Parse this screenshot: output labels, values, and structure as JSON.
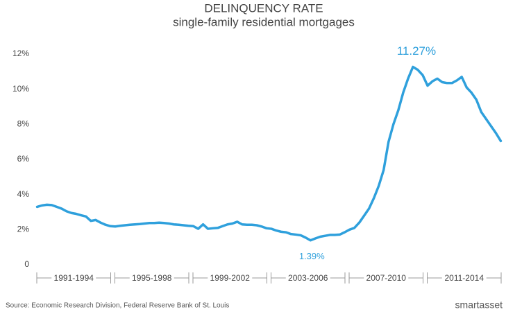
{
  "chart_data": {
    "type": "line",
    "title": "DELINQUENCY RATE",
    "subtitle": "single-family residential mortgages",
    "x_group_labels": [
      "1991-1994",
      "1995-1998",
      "1999-2002",
      "2003-2006",
      "2007-2010",
      "2011-2014"
    ],
    "values": [
      3.3,
      3.38,
      3.42,
      3.4,
      3.3,
      3.2,
      3.05,
      2.95,
      2.9,
      2.82,
      2.75,
      2.5,
      2.55,
      2.4,
      2.28,
      2.2,
      2.18,
      2.22,
      2.25,
      2.28,
      2.3,
      2.32,
      2.35,
      2.38,
      2.38,
      2.4,
      2.38,
      2.35,
      2.3,
      2.28,
      2.25,
      2.22,
      2.2,
      2.05,
      2.3,
      2.05,
      2.08,
      2.1,
      2.2,
      2.3,
      2.35,
      2.45,
      2.3,
      2.28,
      2.28,
      2.25,
      2.18,
      2.08,
      2.05,
      1.95,
      1.88,
      1.85,
      1.75,
      1.72,
      1.68,
      1.55,
      1.39,
      1.5,
      1.6,
      1.65,
      1.7,
      1.7,
      1.72,
      1.85,
      2.0,
      2.1,
      2.4,
      2.8,
      3.2,
      3.8,
      4.5,
      5.4,
      7.0,
      8.0,
      8.8,
      9.8,
      10.6,
      11.27,
      11.1,
      10.8,
      10.2,
      10.45,
      10.6,
      10.4,
      10.35,
      10.35,
      10.5,
      10.7,
      10.1,
      9.8,
      9.4,
      8.7,
      8.3,
      7.9,
      7.5,
      7.05
    ],
    "value_labels": [
      null,
      null,
      null,
      null,
      null,
      null,
      null,
      null,
      null,
      null,
      null,
      null,
      null,
      null,
      null,
      null,
      null,
      null,
      null,
      null,
      null,
      null,
      null,
      null,
      null,
      null,
      null,
      null,
      null,
      null,
      null,
      null,
      null,
      null,
      null,
      null,
      null,
      null,
      null,
      null,
      null,
      null,
      null,
      null,
      null,
      null,
      null,
      null,
      null,
      null,
      null,
      null,
      null,
      null,
      null,
      null,
      "1.39%",
      null,
      null,
      null,
      null,
      null,
      null,
      null,
      null,
      null,
      null,
      null,
      null,
      null,
      null,
      null,
      null,
      null,
      null,
      null,
      null,
      "11.27%",
      null,
      null,
      null,
      null,
      null,
      null,
      null,
      null,
      null,
      null,
      null,
      null,
      null,
      null,
      null,
      null,
      null,
      null
    ],
    "color": "#2fa0dc",
    "ylim": [
      0,
      12
    ],
    "yticks": [
      0,
      {
        "value": 2,
        "label": "2%"
      },
      {
        "value": 4,
        "label": "4%"
      },
      {
        "value": 6,
        "label": "6%"
      },
      {
        "value": 8,
        "label": "8%"
      },
      {
        "value": 10,
        "label": "10%"
      },
      {
        "value": 12,
        "label": "12%"
      }
    ],
    "grid": false,
    "source": "Source: Economic Research Division, Federal Reserve Bank of St. Louis",
    "logo": "smartasset"
  }
}
